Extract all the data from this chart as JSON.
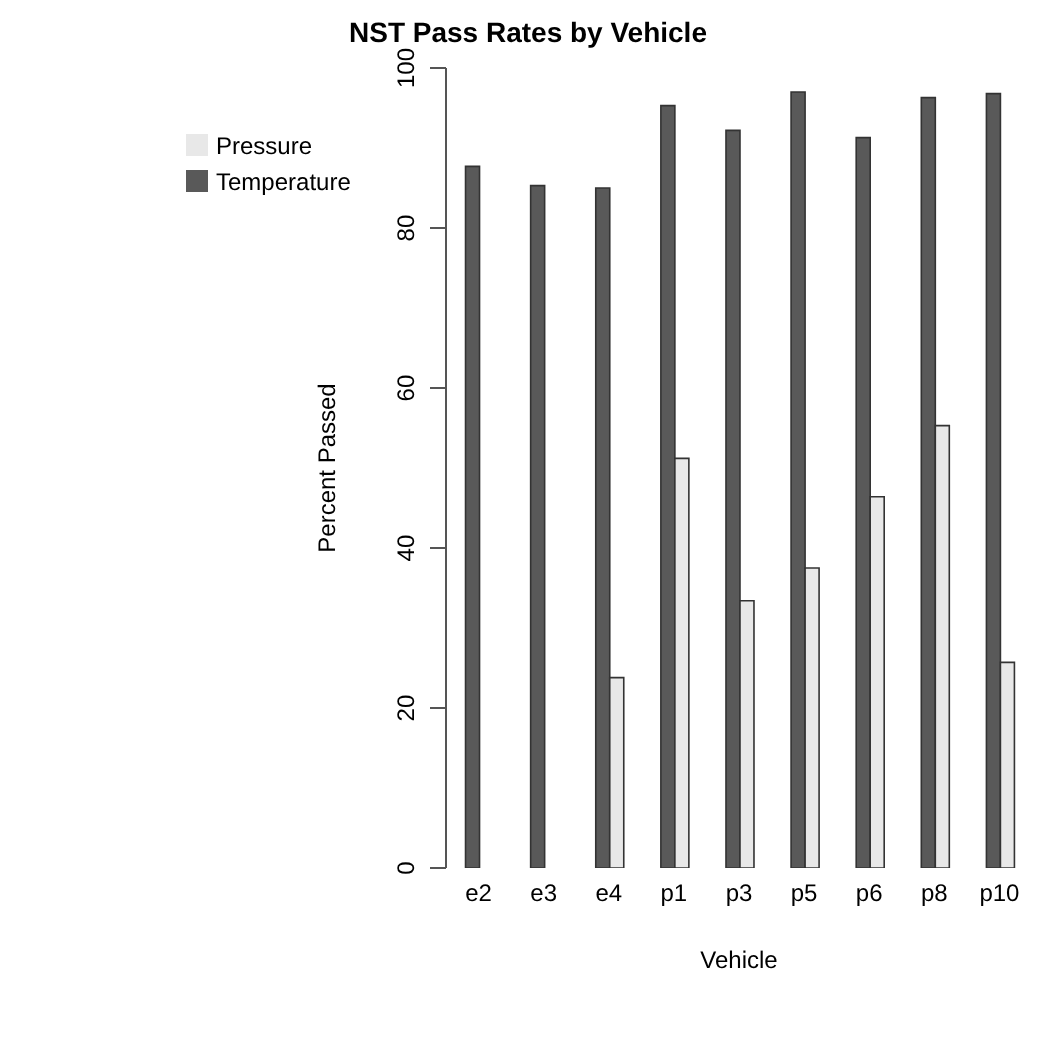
{
  "chart_data": {
    "type": "bar",
    "title": "NST Pass Rates by Vehicle",
    "xlabel": "Vehicle",
    "ylabel": "Percent Passed",
    "categories": [
      "e2",
      "e3",
      "e4",
      "p1",
      "p3",
      "p5",
      "p6",
      "p8",
      "p10"
    ],
    "series": [
      {
        "name": "Temperature",
        "color": "#595959",
        "values": [
          87.7,
          85.3,
          85.0,
          95.3,
          92.2,
          97.0,
          91.3,
          96.3,
          96.8
        ]
      },
      {
        "name": "Pressure",
        "color": "#e8e8e8",
        "values": [
          0,
          0,
          23.8,
          51.2,
          33.4,
          37.5,
          46.4,
          55.3,
          25.7
        ]
      }
    ],
    "ylim": [
      0,
      100
    ],
    "yticks": [
      0,
      20,
      40,
      60,
      80,
      100
    ],
    "grid": false,
    "legend": "top left"
  }
}
